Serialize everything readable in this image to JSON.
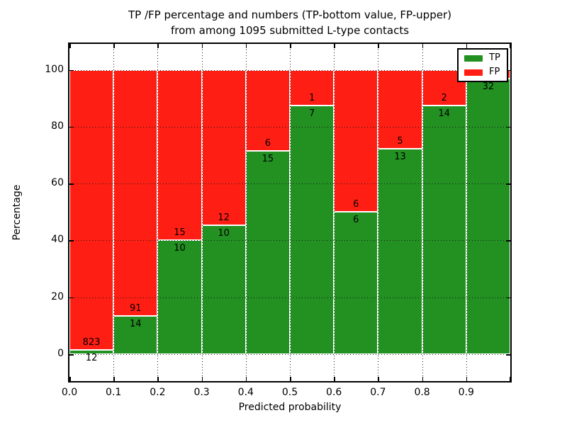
{
  "title": {
    "line1": "TP /FP percentage and numbers (TP-bottom value, FP-upper)",
    "line2": "from among 1095 submitted L-type contacts"
  },
  "axes": {
    "xlabel": "Predicted probability",
    "ylabel": "Percentage",
    "x_tick_labels": [
      "0.0",
      "0.1",
      "0.2",
      "0.3",
      "0.4",
      "0.5",
      "0.6",
      "0.7",
      "0.8",
      "0.9"
    ],
    "y_tick_labels": [
      "0",
      "20",
      "40",
      "60",
      "80",
      "100"
    ],
    "y_tick_values": [
      0,
      20,
      40,
      60,
      80,
      100
    ]
  },
  "legend": {
    "items": [
      {
        "label": "TP",
        "color": "#229122"
      },
      {
        "label": "FP",
        "color": "#ff1e14"
      }
    ]
  },
  "colors": {
    "tp": "#229122",
    "fp": "#ff1e14",
    "background": "#ffffff",
    "text": "#000000"
  },
  "chart_data": {
    "type": "bar",
    "stacked": true,
    "grid": true,
    "legend_position": "upper right",
    "title": "TP /FP percentage and numbers (TP-bottom value, FP-upper) from among 1095 submitted L-type contacts",
    "xlabel": "Predicted probability",
    "ylabel": "Percentage",
    "xlim": [
      0.0,
      1.0
    ],
    "ylim": [
      -10,
      109
    ],
    "total_submitted": "1095",
    "categories": [
      "0.0-0.1",
      "0.1-0.2",
      "0.2-0.3",
      "0.3-0.4",
      "0.4-0.5",
      "0.5-0.6",
      "0.6-0.7",
      "0.7-0.8",
      "0.8-0.9",
      "0.9-1.0"
    ],
    "series": [
      {
        "name": "TP",
        "color": "#229122",
        "percent": [
          1.44,
          13.33,
          40.0,
          45.45,
          71.43,
          87.5,
          50.0,
          72.22,
          87.5,
          96.97
        ]
      },
      {
        "name": "FP",
        "color": "#ff1e14",
        "percent": [
          98.56,
          86.67,
          60.0,
          54.55,
          28.57,
          12.5,
          50.0,
          27.78,
          12.5,
          3.03
        ]
      }
    ],
    "bars": [
      {
        "tp_pct": 1.44,
        "tp_label": "12",
        "fp_label": "823"
      },
      {
        "tp_pct": 13.33,
        "tp_label": "14",
        "fp_label": "91"
      },
      {
        "tp_pct": 40.0,
        "tp_label": "10",
        "fp_label": "15"
      },
      {
        "tp_pct": 45.45,
        "tp_label": "10",
        "fp_label": "12"
      },
      {
        "tp_pct": 71.43,
        "tp_label": "15",
        "fp_label": "6"
      },
      {
        "tp_pct": 87.5,
        "tp_label": "7",
        "fp_label": "1"
      },
      {
        "tp_pct": 50.0,
        "tp_label": "6",
        "fp_label": "6"
      },
      {
        "tp_pct": 72.22,
        "tp_label": "13",
        "fp_label": "5"
      },
      {
        "tp_pct": 87.5,
        "tp_label": "14",
        "fp_label": "2"
      },
      {
        "tp_pct": 96.97,
        "tp_label": "32",
        "fp_label": ""
      }
    ]
  }
}
